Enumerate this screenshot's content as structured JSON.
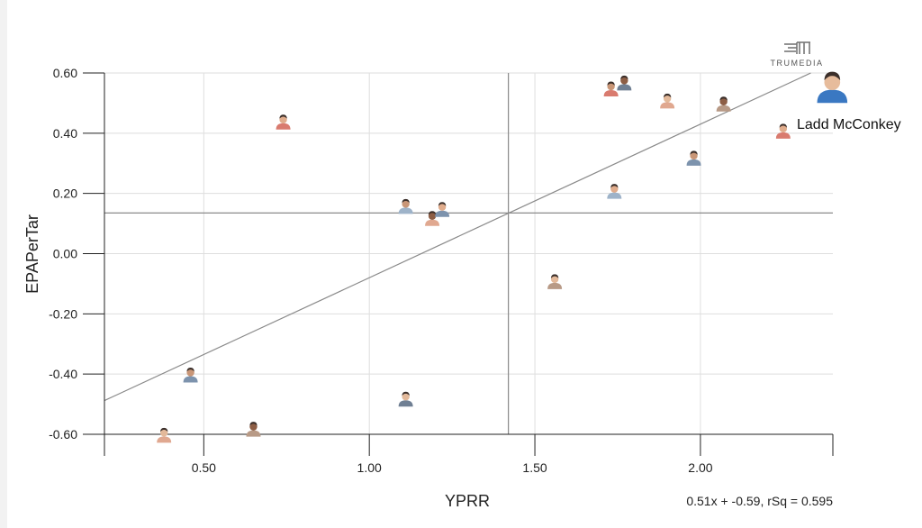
{
  "brand": {
    "logo_text": "TRUMEDIA"
  },
  "chart_data": {
    "type": "scatter",
    "xlabel": "YPRR",
    "ylabel": "EPAPerTar",
    "xlim": [
      0.2,
      2.4
    ],
    "ylim": [
      -0.6,
      0.6
    ],
    "x_ticks": [
      "0.50",
      "1.00",
      "1.50",
      "2.00"
    ],
    "x_tick_values": [
      0.5,
      1.0,
      1.5,
      2.0
    ],
    "y_ticks": [
      "0.60",
      "0.40",
      "0.20",
      "0.00",
      "-0.20",
      "-0.40",
      "-0.60"
    ],
    "y_tick_values": [
      0.6,
      0.4,
      0.2,
      0.0,
      -0.2,
      -0.4,
      -0.6
    ],
    "grid": true,
    "mean_lines": {
      "x": 1.42,
      "y": 0.135
    },
    "trendline": {
      "slope": 0.51,
      "intercept": -0.59
    },
    "equation_text": "0.51x + -0.59, rSq = 0.595",
    "highlight": {
      "label": "Ladd McConkey",
      "x": 2.39,
      "y": 0.55
    },
    "points": [
      {
        "x": 0.38,
        "y": -0.61
      },
      {
        "x": 0.46,
        "y": -0.41
      },
      {
        "x": 0.65,
        "y": -0.59
      },
      {
        "x": 0.74,
        "y": 0.43
      },
      {
        "x": 1.11,
        "y": -0.49
      },
      {
        "x": 1.11,
        "y": 0.15
      },
      {
        "x": 1.19,
        "y": 0.11
      },
      {
        "x": 1.22,
        "y": 0.14
      },
      {
        "x": 1.56,
        "y": -0.1
      },
      {
        "x": 1.73,
        "y": 0.54
      },
      {
        "x": 1.77,
        "y": 0.56
      },
      {
        "x": 1.74,
        "y": 0.2
      },
      {
        "x": 1.9,
        "y": 0.5
      },
      {
        "x": 1.98,
        "y": 0.31
      },
      {
        "x": 2.07,
        "y": 0.49
      },
      {
        "x": 2.25,
        "y": 0.4
      }
    ],
    "marker_colors": [
      "#e0a890",
      "#7d93ad",
      "#b89a86",
      "#d97b6f",
      "#6f7f93",
      "#9eb3c9"
    ],
    "highlight_color": "#3a78c2"
  }
}
